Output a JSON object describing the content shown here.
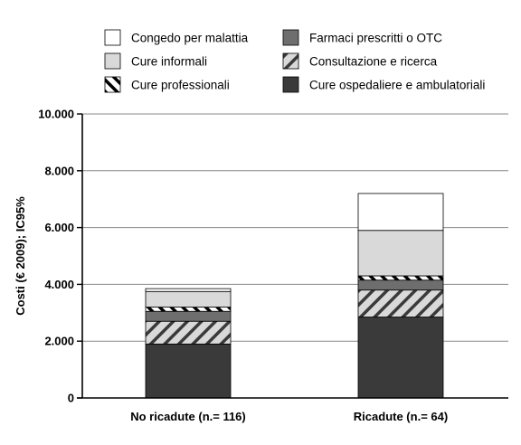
{
  "chart_data": {
    "type": "bar",
    "stacked": true,
    "title": "",
    "xlabel": "",
    "ylabel": "Costi (€ 2009); IC95%",
    "ylim": [
      0,
      10000
    ],
    "yticks": [
      0,
      2000,
      4000,
      6000,
      8000,
      10000
    ],
    "ytick_labels": [
      "0",
      "2.000",
      "4.000",
      "6.000",
      "8.000",
      "10.000"
    ],
    "grid": true,
    "legend_position": "top",
    "categories": [
      "No ricadute (n.= 116)",
      "Ricadute (n.= 64)"
    ],
    "series": [
      {
        "name": "Cure ospedaliere e ambulatoriali",
        "values": [
          1900,
          2850
        ],
        "color": "#3a3a3a",
        "pattern": "solid"
      },
      {
        "name": "Consultazione e ricerca",
        "values": [
          800,
          950
        ],
        "color": "#d9d9d9",
        "pattern": "hatch-right"
      },
      {
        "name": "Farmaci prescritti o OTC",
        "values": [
          350,
          350
        ],
        "color": "#6e6e6e",
        "pattern": "solid"
      },
      {
        "name": "Cure professionali",
        "values": [
          150,
          150
        ],
        "color": "#ffffff",
        "pattern": "hatch-left"
      },
      {
        "name": "Cure informali",
        "values": [
          550,
          1600
        ],
        "color": "#d9d9d9",
        "pattern": "solid"
      },
      {
        "name": "Congedo per malattia",
        "values": [
          100,
          1300
        ],
        "color": "#ffffff",
        "pattern": "solid"
      }
    ],
    "legend_order": [
      "Congedo per malattia",
      "Farmaci prescritti o OTC",
      "Cure informali",
      "Consultazione e ricerca",
      "Cure professionali",
      "Cure ospedaliere e ambulatoriali"
    ]
  }
}
